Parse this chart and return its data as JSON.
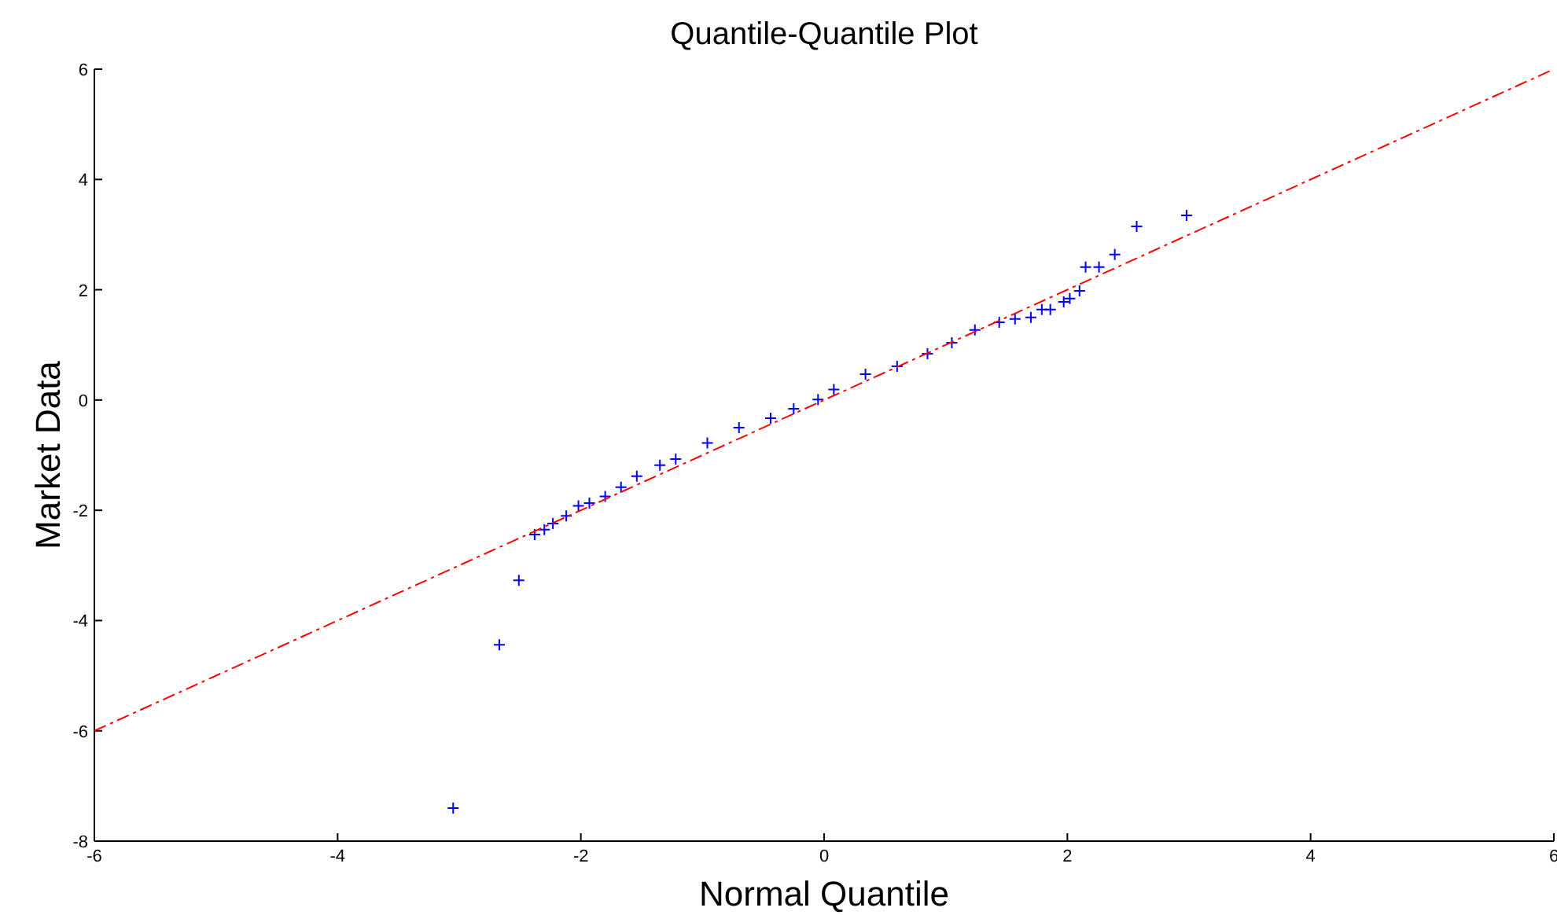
{
  "chart_data": {
    "type": "scatter",
    "title": "Quantile-Quantile Plot",
    "xlabel": "Normal Quantile",
    "ylabel": "Market Data",
    "xlim": [
      -6,
      6
    ],
    "xticks": [
      -6,
      -4,
      -2,
      0,
      2,
      4,
      6
    ],
    "ylim": [
      -8,
      6
    ],
    "yticks": [
      -8,
      -6,
      -4,
      -2,
      0,
      2,
      4,
      6
    ],
    "grid": false,
    "series": [
      {
        "color": "#0000ff",
        "marker": "cross",
        "x": [
          -3.05,
          -2.67,
          -2.51,
          -2.38,
          -2.3,
          -2.23,
          -2.12,
          -2.02,
          -1.93,
          -1.8,
          -1.67,
          -1.54,
          -1.35,
          -1.22,
          -0.96,
          -0.7,
          -0.44,
          -0.25,
          -0.05,
          0.08,
          0.34,
          0.6,
          0.85,
          1.05,
          1.24,
          1.44,
          1.57,
          1.7,
          1.79,
          1.86,
          1.97,
          2.02,
          2.1,
          2.15,
          2.26,
          2.39,
          2.57,
          2.98
        ],
        "values": [
          -7.4,
          -4.44,
          -3.27,
          -2.44,
          -2.35,
          -2.24,
          -2.1,
          -1.92,
          -1.87,
          -1.75,
          -1.58,
          -1.38,
          -1.18,
          -1.07,
          -0.78,
          -0.5,
          -0.33,
          -0.16,
          0.01,
          0.19,
          0.47,
          0.61,
          0.84,
          1.04,
          1.27,
          1.41,
          1.47,
          1.5,
          1.64,
          1.64,
          1.78,
          1.84,
          1.98,
          2.41,
          2.41,
          2.64,
          3.15,
          3.35
        ]
      },
      {
        "type": "line",
        "color": "#ff0000",
        "line_style": "dashed",
        "marker": "none",
        "x": [
          -6,
          6
        ],
        "values": [
          -6,
          6
        ]
      }
    ]
  }
}
